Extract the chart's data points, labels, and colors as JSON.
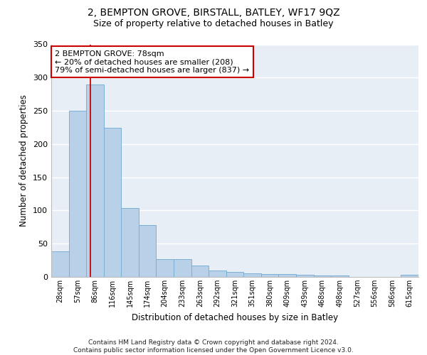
{
  "title": "2, BEMPTON GROVE, BIRSTALL, BATLEY, WF17 9QZ",
  "subtitle": "Size of property relative to detached houses in Batley",
  "xlabel": "Distribution of detached houses by size in Batley",
  "ylabel": "Number of detached properties",
  "categories": [
    "28sqm",
    "57sqm",
    "86sqm",
    "116sqm",
    "145sqm",
    "174sqm",
    "204sqm",
    "233sqm",
    "263sqm",
    "292sqm",
    "321sqm",
    "351sqm",
    "380sqm",
    "409sqm",
    "439sqm",
    "468sqm",
    "498sqm",
    "527sqm",
    "556sqm",
    "586sqm",
    "615sqm"
  ],
  "values": [
    38,
    250,
    290,
    224,
    104,
    78,
    27,
    27,
    17,
    10,
    8,
    5,
    4,
    4,
    3,
    2,
    2,
    0,
    0,
    0,
    3
  ],
  "bar_color": "#b8d0e8",
  "bar_edge_color": "#7aafd4",
  "background_color": "#e8eef6",
  "grid_color": "#ffffff",
  "property_line_color": "#cc0000",
  "annotation_text": "2 BEMPTON GROVE: 78sqm\n← 20% of detached houses are smaller (208)\n79% of semi-detached houses are larger (837) →",
  "annotation_box_color": "#ffffff",
  "annotation_box_edge": "#cc0000",
  "ylim": [
    0,
    350
  ],
  "yticks": [
    0,
    50,
    100,
    150,
    200,
    250,
    300,
    350
  ],
  "footer": "Contains HM Land Registry data © Crown copyright and database right 2024.\nContains public sector information licensed under the Open Government Licence v3.0.",
  "title_fontsize": 10,
  "subtitle_fontsize": 9,
  "xlabel_fontsize": 8.5,
  "ylabel_fontsize": 8.5,
  "property_line_xindex": 1.72
}
